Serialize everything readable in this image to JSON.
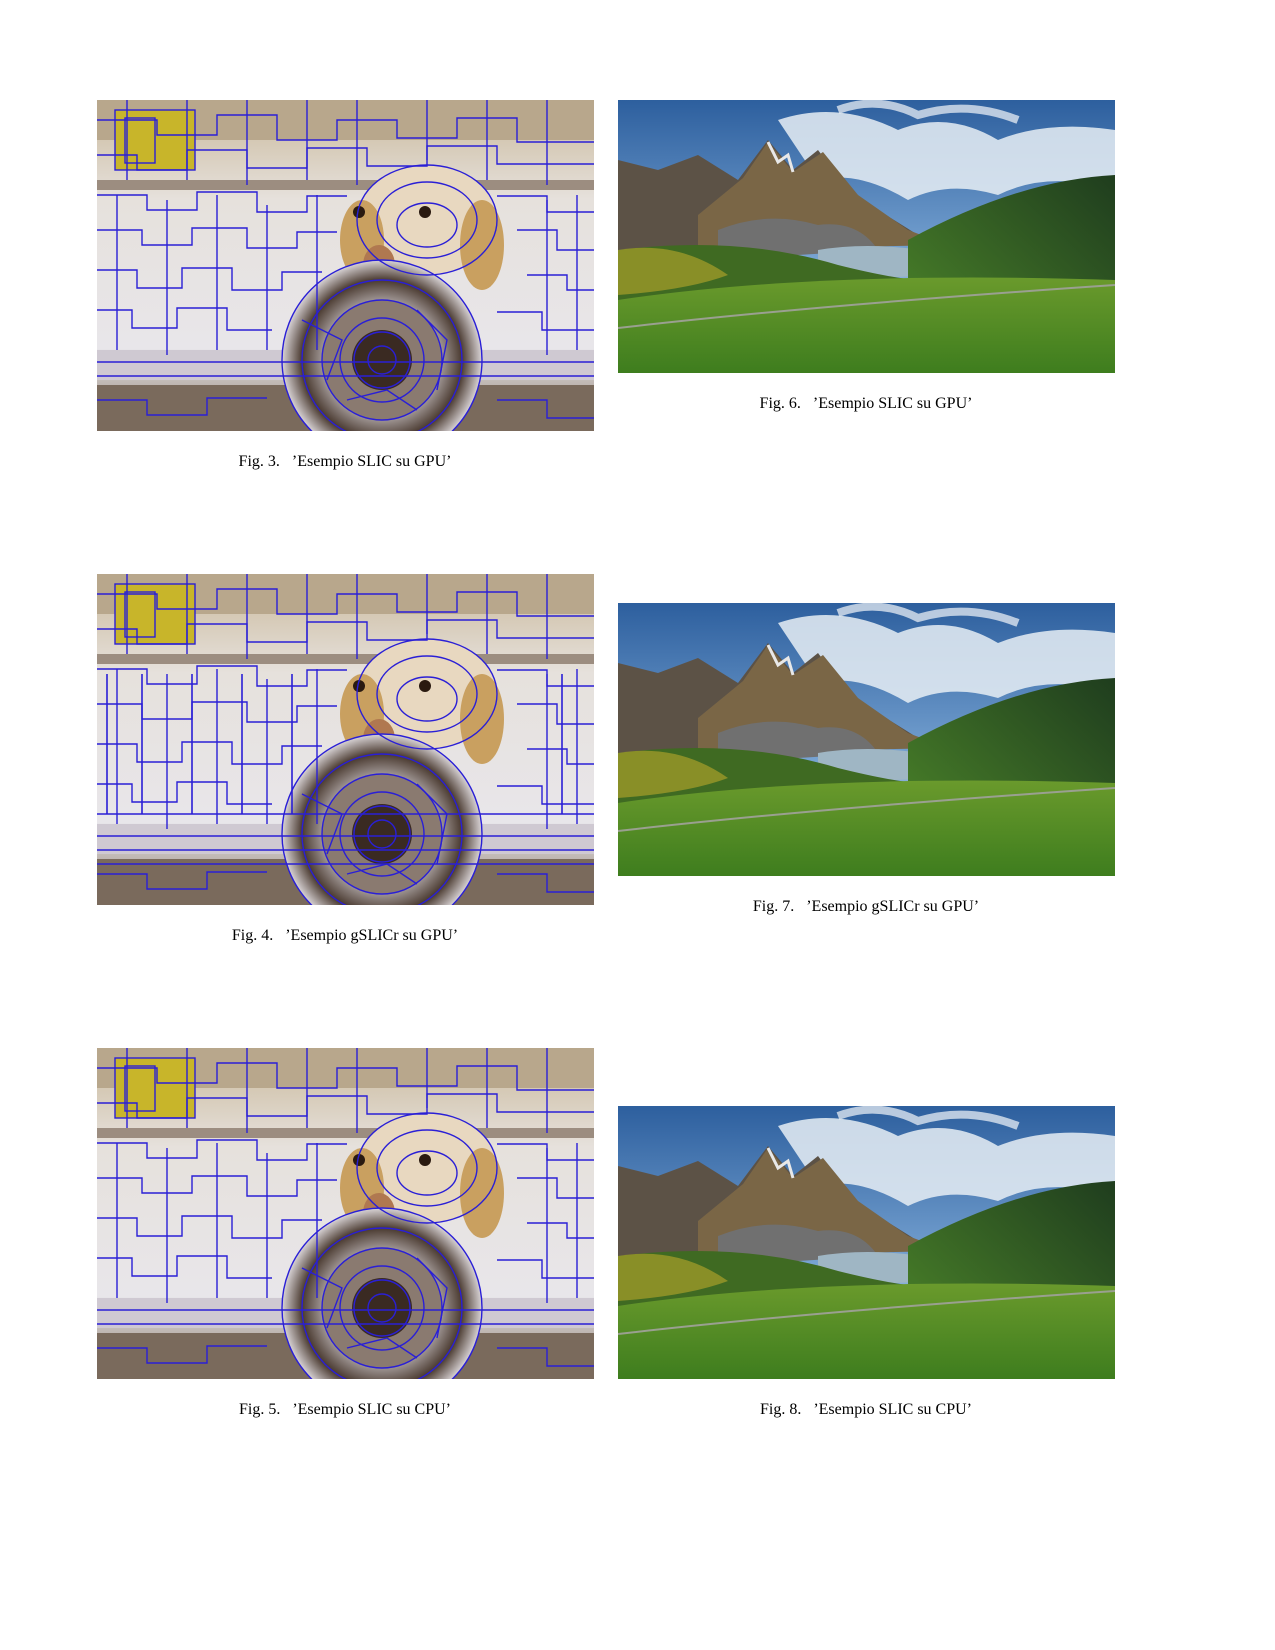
{
  "page": {
    "figures": [
      {
        "id": "fig3",
        "kind": "dog",
        "label": "Fig. 3.",
        "title": "’Esempio SLIC su GPU’"
      },
      {
        "id": "fig4",
        "kind": "dog",
        "label": "Fig. 4.",
        "title": "’Esempio gSLICr su GPU’"
      },
      {
        "id": "fig5",
        "kind": "dog",
        "label": "Fig. 5.",
        "title": "’Esempio SLIC su CPU’"
      },
      {
        "id": "fig6",
        "kind": "landscape",
        "label": "Fig. 6.",
        "title": "’Esempio SLIC su GPU’"
      },
      {
        "id": "fig7",
        "kind": "landscape",
        "label": "Fig. 7.",
        "title": "’Esempio gSLICr su GPU’"
      },
      {
        "id": "fig8",
        "kind": "landscape",
        "label": "Fig. 8.",
        "title": "’Esempio SLIC su CPU’"
      }
    ],
    "colors": {
      "superpixel_boundary": "#2a1fd6",
      "sky": "#3a78c2",
      "cloud": "#e8eef5",
      "mountain": "#6a5a44",
      "grass": "#4a8a2a",
      "water": "#9fb6c4"
    }
  }
}
